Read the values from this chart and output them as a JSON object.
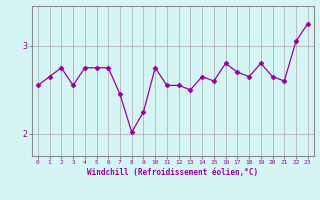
{
  "x": [
    0,
    1,
    2,
    3,
    4,
    5,
    6,
    7,
    8,
    9,
    10,
    11,
    12,
    13,
    14,
    15,
    16,
    17,
    18,
    19,
    20,
    21,
    22,
    23
  ],
  "y": [
    2.55,
    2.65,
    2.75,
    2.55,
    2.75,
    2.75,
    2.75,
    2.45,
    2.02,
    2.25,
    2.75,
    2.55,
    2.55,
    2.5,
    2.65,
    2.6,
    2.8,
    2.7,
    2.65,
    2.8,
    2.65,
    2.6,
    3.05,
    3.25
  ],
  "line_color": "#990099",
  "marker": "D",
  "marker_size": 2.5,
  "xlabel": "Windchill (Refroidissement éolien,°C)",
  "ylabel": "",
  "ylim": [
    1.75,
    3.45
  ],
  "xlim": [
    -0.5,
    23.5
  ],
  "yticks": [
    2,
    3
  ],
  "xticks": [
    0,
    1,
    2,
    3,
    4,
    5,
    6,
    7,
    8,
    9,
    10,
    11,
    12,
    13,
    14,
    15,
    16,
    17,
    18,
    19,
    20,
    21,
    22,
    23
  ],
  "bg_color": "#d5f5f5",
  "grid_color": "#aaaaaa",
  "label_color": "#990099",
  "font_family": "monospace"
}
